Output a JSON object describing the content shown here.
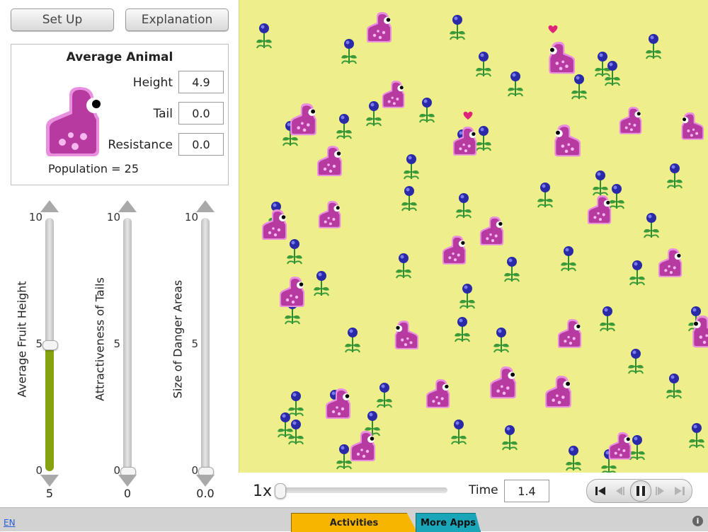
{
  "buttons": {
    "setup": "Set Up",
    "explanation": "Explanation"
  },
  "average_animal": {
    "title": "Average Animal",
    "height_label": "Height",
    "height_value": "4.9",
    "tail_label": "Tail",
    "tail_value": "0.0",
    "resistance_label": "Resistance",
    "resistance_value": "0.0",
    "population_text": "Population = 25"
  },
  "sliders": [
    {
      "label": "Average Fruit Height",
      "max": "10",
      "mid": "5",
      "min": "0",
      "value": "5",
      "fraction": 0.5
    },
    {
      "label": "Attractiveness of Tails",
      "max": "10",
      "mid": "5",
      "min": "0",
      "value": "0",
      "fraction": 0.0
    },
    {
      "label": "Size of Danger Areas",
      "max": "10",
      "mid": "5",
      "min": "0",
      "value": "0.0",
      "fraction": 0.0
    }
  ],
  "controls": {
    "speed_label": "1x",
    "speed_fraction": 0.0,
    "time_label": "Time",
    "time_value": "1.4"
  },
  "footer": {
    "language": "EN",
    "activities_tab": "Activities",
    "more_apps_tab": "More Apps",
    "info_symbol": "i"
  },
  "colors": {
    "field": "#eeee8a",
    "creature": "#b63aa0",
    "creature_outline": "#e98fe0",
    "flower": "#2a2aa8",
    "stem": "#2e8b2e",
    "slider_fill": "#86a30f",
    "activities_tab": "#f7b500",
    "more_apps_tab": "#1aa6b8"
  },
  "icons": {
    "creature": "pink-creature-icon",
    "flower": "blue-flower-icon",
    "heart": "heart-icon"
  }
}
